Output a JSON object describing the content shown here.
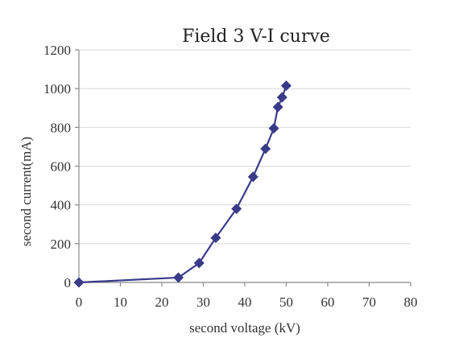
{
  "chart_data": {
    "type": "line",
    "title": "Field 3 V-I curve",
    "xlabel": "second voltage (kV)",
    "ylabel": "second current(mA)",
    "xlim": [
      0,
      80
    ],
    "ylim": [
      0,
      1200
    ],
    "x_ticks": [
      0,
      10,
      20,
      30,
      40,
      50,
      60,
      70,
      80
    ],
    "y_ticks": [
      0,
      200,
      400,
      600,
      800,
      1000,
      1200
    ],
    "grid": true,
    "legend": "none",
    "colors": {
      "series": "#3a3a8a",
      "marker": "#3a3a8a"
    },
    "series": [
      {
        "marker": "diamond",
        "x": [
          0,
          24,
          29,
          33,
          38,
          42,
          45,
          47,
          48,
          49,
          50
        ],
        "y": [
          0,
          25,
          100,
          230,
          380,
          545,
          690,
          795,
          905,
          955,
          1015
        ]
      }
    ]
  }
}
